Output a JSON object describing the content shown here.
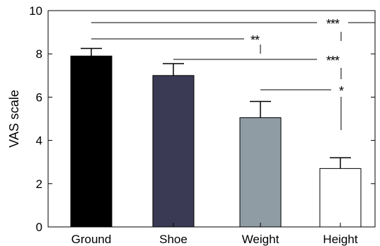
{
  "chart_data": {
    "type": "bar",
    "title": "",
    "xlabel": "",
    "ylabel": "VAS scale",
    "ylim": [
      0,
      10
    ],
    "yticks": [
      0,
      2,
      4,
      6,
      8,
      10
    ],
    "grid": false,
    "categories": [
      "Ground",
      "Shoe",
      "Weight",
      "Height"
    ],
    "values": [
      7.9,
      7.0,
      5.05,
      2.7
    ],
    "error_upper": [
      0.35,
      0.55,
      0.75,
      0.5
    ],
    "colors": [
      "#000000",
      "#3b3a54",
      "#8f9ca3",
      "#ffffff"
    ],
    "significance": [
      {
        "from": 0,
        "to": 3,
        "label": "***"
      },
      {
        "from": 0,
        "to": 1,
        "label": "**"
      },
      {
        "from": 1,
        "to": 3,
        "label": "***"
      },
      {
        "from": 2,
        "to": 3,
        "label": "*"
      }
    ]
  }
}
